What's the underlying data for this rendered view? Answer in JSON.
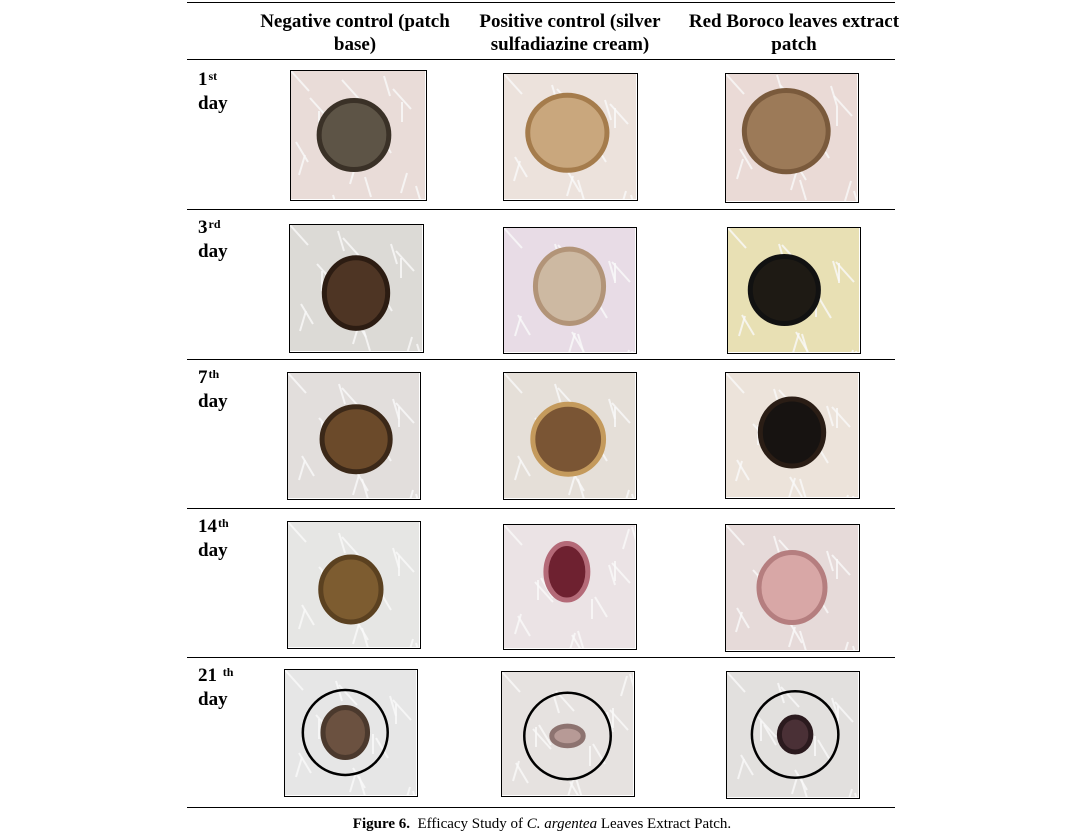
{
  "header": {
    "columns": [
      "Negative control (patch base)",
      "Positive control (silver sulfadiazine cream)",
      "Red Boroco leaves extract patch"
    ]
  },
  "rows": [
    {
      "number": "1",
      "suffix": "st",
      "unit": "day"
    },
    {
      "number": "3",
      "suffix": "rd",
      "unit": "day"
    },
    {
      "number": "7",
      "suffix": "th",
      "unit": "day"
    },
    {
      "number": "14",
      "suffix": "th",
      "unit": "day"
    },
    {
      "number": "21",
      "suffix": "th",
      "unit": "day"
    }
  ],
  "caption": {
    "label": "Figure 6.",
    "text_before": "Efficacy Study of",
    "species": "C. argentea",
    "text_after": "Leaves Extract Patch."
  }
}
